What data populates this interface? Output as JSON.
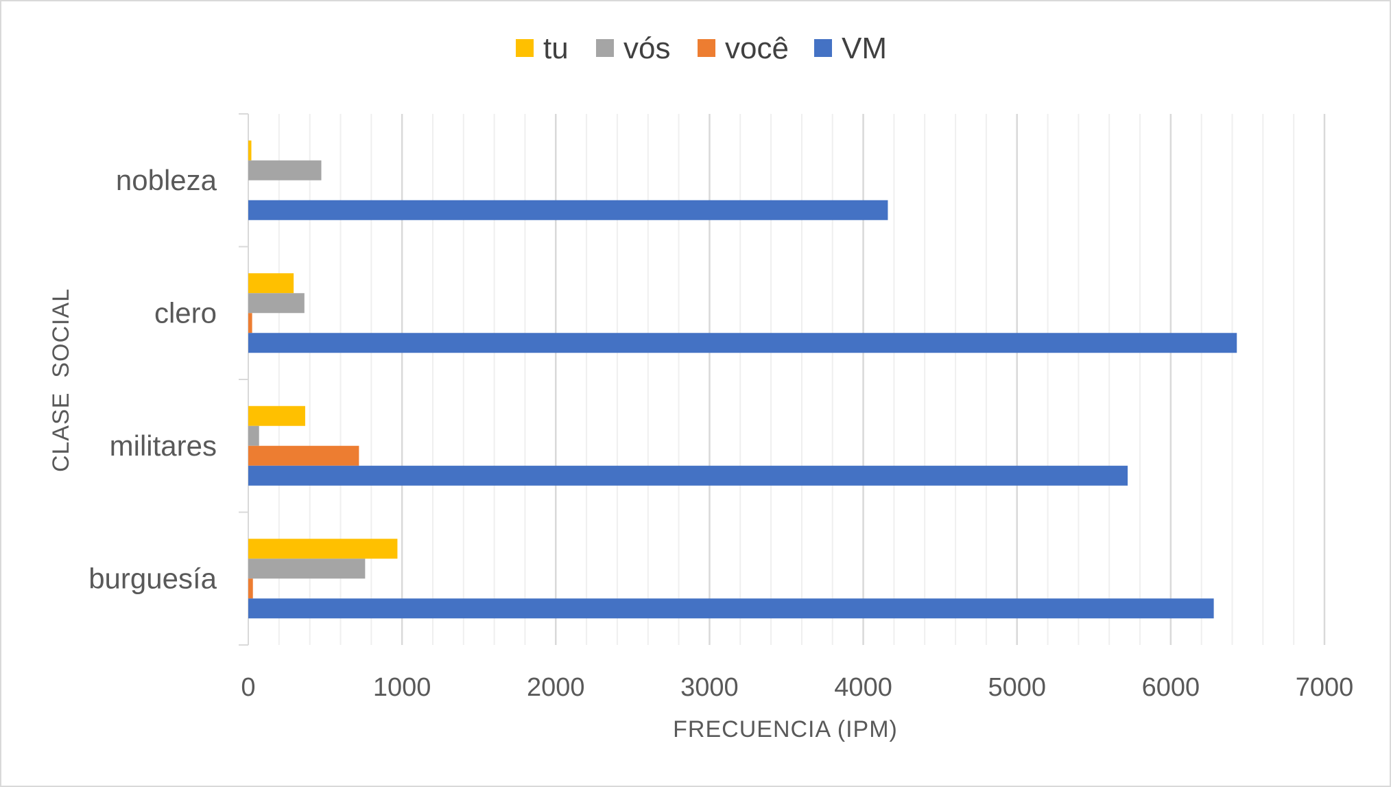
{
  "chart_data": {
    "type": "bar",
    "orientation": "horizontal",
    "categories": [
      "burguesía",
      "militares",
      "clero",
      "nobleza"
    ],
    "series": [
      {
        "name": "tu",
        "color": "#FFC000",
        "values": [
          970,
          370,
          295,
          20
        ]
      },
      {
        "name": "vós",
        "color": "#A5A5A5",
        "values": [
          760,
          70,
          365,
          475
        ]
      },
      {
        "name": "você",
        "color": "#ED7D31",
        "values": [
          30,
          720,
          25,
          0
        ]
      },
      {
        "name": "VM",
        "color": "#4472C4",
        "values": [
          6280,
          5720,
          6430,
          4160
        ]
      }
    ],
    "xlabel": "FRECUENCIA (IPM)",
    "ylabel": "CLASE  SOCIAL",
    "xlim": [
      0,
      7000
    ],
    "xticks": [
      0,
      1000,
      2000,
      3000,
      4000,
      5000,
      6000,
      7000
    ],
    "grid": true,
    "legend_position": "top"
  }
}
